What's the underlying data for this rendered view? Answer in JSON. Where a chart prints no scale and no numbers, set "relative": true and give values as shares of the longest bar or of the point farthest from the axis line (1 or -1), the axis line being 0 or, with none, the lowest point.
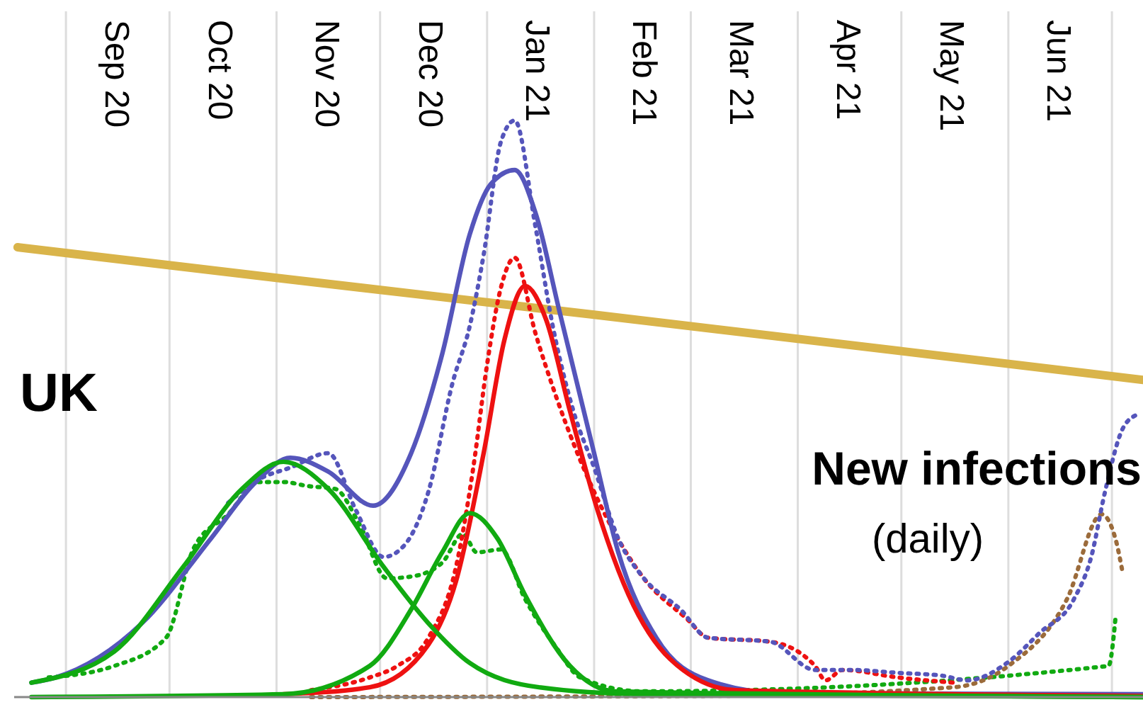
{
  "chart_data": {
    "type": "line",
    "relative": true,
    "grid": "x",
    "tick_labels": "x",
    "marker": "none",
    "xlim": [
      "2020-08-17",
      "2021-07-10"
    ],
    "xticks": [
      {
        "value": "2020-09-01",
        "label": null
      },
      {
        "value": "2020-09-15",
        "label": "Sep 20"
      },
      {
        "value": "2020-10-01",
        "label": null
      },
      {
        "value": "2020-10-15",
        "label": "Oct 20"
      },
      {
        "value": "2020-11-01",
        "label": null
      },
      {
        "value": "2020-11-15",
        "label": "Nov 20"
      },
      {
        "value": "2020-12-01",
        "label": null
      },
      {
        "value": "2020-12-15",
        "label": "Dec 20"
      },
      {
        "value": "2021-01-01",
        "label": null
      },
      {
        "value": "2021-01-15",
        "label": "Jan 21"
      },
      {
        "value": "2021-02-01",
        "label": null
      },
      {
        "value": "2021-02-15",
        "label": "Feb 21"
      },
      {
        "value": "2021-03-01",
        "label": null
      },
      {
        "value": "2021-03-15",
        "label": "Mar 21"
      },
      {
        "value": "2021-04-01",
        "label": null
      },
      {
        "value": "2021-04-15",
        "label": "Apr 21"
      },
      {
        "value": "2021-05-01",
        "label": null
      },
      {
        "value": "2021-05-15",
        "label": "May 21"
      },
      {
        "value": "2021-06-01",
        "label": null
      },
      {
        "value": "2021-06-15",
        "label": "Jun 21"
      },
      {
        "value": "2021-07-01",
        "label": null
      }
    ],
    "annotations": [
      "UK",
      "New infections",
      "(daily)"
    ],
    "series": [
      {
        "color": "#d9b44a",
        "line_style": "solid",
        "x": [
          "2020-08-18",
          "2020-11-01",
          "2021-02-01",
          "2021-05-01",
          "2021-07-10"
        ],
        "values": [
          0.78,
          0.727,
          0.663,
          0.6,
          0.55
        ]
      },
      {
        "color": "#11aa11",
        "line_style": "dotted",
        "x": [
          "2020-08-27",
          "2020-09-15",
          "2020-09-30",
          "2020-10-08",
          "2020-10-18",
          "2020-10-27",
          "2020-11-03",
          "2020-11-10",
          "2020-11-18",
          "2020-11-25",
          "2020-12-03",
          "2020-12-10",
          "2020-12-19",
          "2020-12-25",
          "2020-12-29",
          "2021-01-05",
          "2021-01-12",
          "2021-01-21",
          "2021-01-28",
          "2021-02-15",
          "2021-06-30",
          "2021-07-02"
        ],
        "values": [
          0.034,
          0.054,
          0.103,
          0.258,
          0.317,
          0.373,
          0.373,
          0.366,
          0.361,
          0.3,
          0.206,
          0.209,
          0.233,
          0.283,
          0.251,
          0.256,
          0.17,
          0.086,
          0.034,
          0.01,
          0.054,
          0.135
        ]
      },
      {
        "color": "#9b6b3b",
        "line_style": "dotted",
        "x": [
          "2020-11-11",
          "2021-03-06",
          "2021-05-16",
          "2021-06-01",
          "2021-06-18",
          "2021-06-28",
          "2021-07-02",
          "2021-07-04"
        ],
        "values": [
          0,
          0.002,
          0.017,
          0.054,
          0.17,
          0.317,
          0.275,
          0.219
        ]
      },
      {
        "color": "#ee1111",
        "line_style": "dotted",
        "x": [
          "2020-11-11",
          "2020-11-28",
          "2020-12-06",
          "2020-12-15",
          "2020-12-23",
          "2020-12-28",
          "2021-01-01",
          "2021-01-05",
          "2021-01-09",
          "2021-01-15",
          "2021-01-21",
          "2021-02-01",
          "2021-02-15",
          "2021-02-28",
          "2021-03-06",
          "2021-03-24",
          "2021-04-06",
          "2021-04-09",
          "2021-04-14",
          "2021-04-30",
          "2021-05-16"
        ],
        "values": [
          0.012,
          0.034,
          0.054,
          0.103,
          0.226,
          0.398,
          0.577,
          0.71,
          0.762,
          0.631,
          0.521,
          0.356,
          0.209,
          0.135,
          0.103,
          0.096,
          0.054,
          0.029,
          0.047,
          0.034,
          0.025
        ]
      },
      {
        "color": "#5555bb",
        "line_style": "dotted",
        "x": [
          "2020-10-18",
          "2020-10-27",
          "2020-11-05",
          "2020-11-16",
          "2020-11-24",
          "2020-12-02",
          "2020-12-08",
          "2020-12-15",
          "2020-12-22",
          "2020-12-27",
          "2020-12-31",
          "2021-01-05",
          "2021-01-09",
          "2021-01-15",
          "2021-01-20",
          "2021-01-26",
          "2021-02-01",
          "2021-02-08",
          "2021-02-15",
          "2021-02-26",
          "2021-03-06",
          "2021-03-24",
          "2021-04-06",
          "2021-04-17",
          "2021-04-30",
          "2021-05-13",
          "2021-05-20",
          "2021-06-01",
          "2021-06-10",
          "2021-06-20",
          "2021-06-25",
          "2021-06-29",
          "2021-07-04",
          "2021-07-08"
        ],
        "values": [
          0.337,
          0.378,
          0.398,
          0.423,
          0.324,
          0.243,
          0.263,
          0.356,
          0.545,
          0.644,
          0.767,
          0.963,
          1,
          0.816,
          0.644,
          0.496,
          0.398,
          0.275,
          0.209,
          0.152,
          0.103,
          0.096,
          0.047,
          0.047,
          0.042,
          0.037,
          0.029,
          0.061,
          0.111,
          0.17,
          0.243,
          0.356,
          0.464,
          0.489
        ]
      },
      {
        "color": "#5555bb",
        "line_style": "solid",
        "x": [
          "2020-08-22",
          "2020-08-29",
          "2020-09-23",
          "2020-10-13",
          "2020-10-26",
          "2020-11-05",
          "2020-11-16",
          "2020-11-29",
          "2020-12-10",
          "2020-12-19",
          "2020-12-27",
          "2021-01-02",
          "2021-01-09",
          "2021-01-15",
          "2021-01-22",
          "2021-02-01",
          "2021-02-08",
          "2021-02-19",
          "2021-03-06",
          "2021-03-27",
          "2021-07-10"
        ],
        "values": [
          0.025,
          0.034,
          0.128,
          0.275,
          0.373,
          0.415,
          0.391,
          0.332,
          0.423,
          0.595,
          0.803,
          0.889,
          0.914,
          0.84,
          0.668,
          0.423,
          0.251,
          0.103,
          0.029,
          0.007,
          0.005
        ]
      },
      {
        "color": "#ee1111",
        "line_style": "solid",
        "x": [
          "2020-11-03",
          "2020-11-28",
          "2020-12-15",
          "2020-12-23",
          "2020-12-31",
          "2021-01-06",
          "2021-01-12",
          "2021-01-18",
          "2021-01-25",
          "2021-02-02",
          "2021-02-11",
          "2021-02-23",
          "2021-03-14",
          "2021-07-10"
        ],
        "values": [
          0.005,
          0.017,
          0.091,
          0.201,
          0.423,
          0.619,
          0.713,
          0.656,
          0.496,
          0.324,
          0.177,
          0.066,
          0.012,
          0.002
        ]
      },
      {
        "color": "#11aa11",
        "line_style": "solid",
        "x": [
          "2020-08-22",
          "2020-09-15",
          "2020-10-05",
          "2020-10-22",
          "2020-11-03",
          "2020-11-16",
          "2020-12-02",
          "2020-12-15",
          "2020-12-27",
          "2021-01-16",
          "2021-02-15",
          "2021-07-10"
        ],
        "values": [
          0.025,
          0.079,
          0.226,
          0.361,
          0.408,
          0.361,
          0.226,
          0.128,
          0.059,
          0.017,
          0.005,
          0
        ]
      },
      {
        "color": "#11aa11",
        "line_style": "solid",
        "x": [
          "2020-08-22",
          "2020-11-03",
          "2020-11-28",
          "2020-12-10",
          "2020-12-19",
          "2020-12-27",
          "2021-01-04",
          "2021-01-12",
          "2021-01-25",
          "2021-02-07",
          "2021-07-10"
        ],
        "values": [
          0,
          0.005,
          0.054,
          0.152,
          0.251,
          0.319,
          0.275,
          0.177,
          0.054,
          0.01,
          0
        ]
      }
    ]
  }
}
